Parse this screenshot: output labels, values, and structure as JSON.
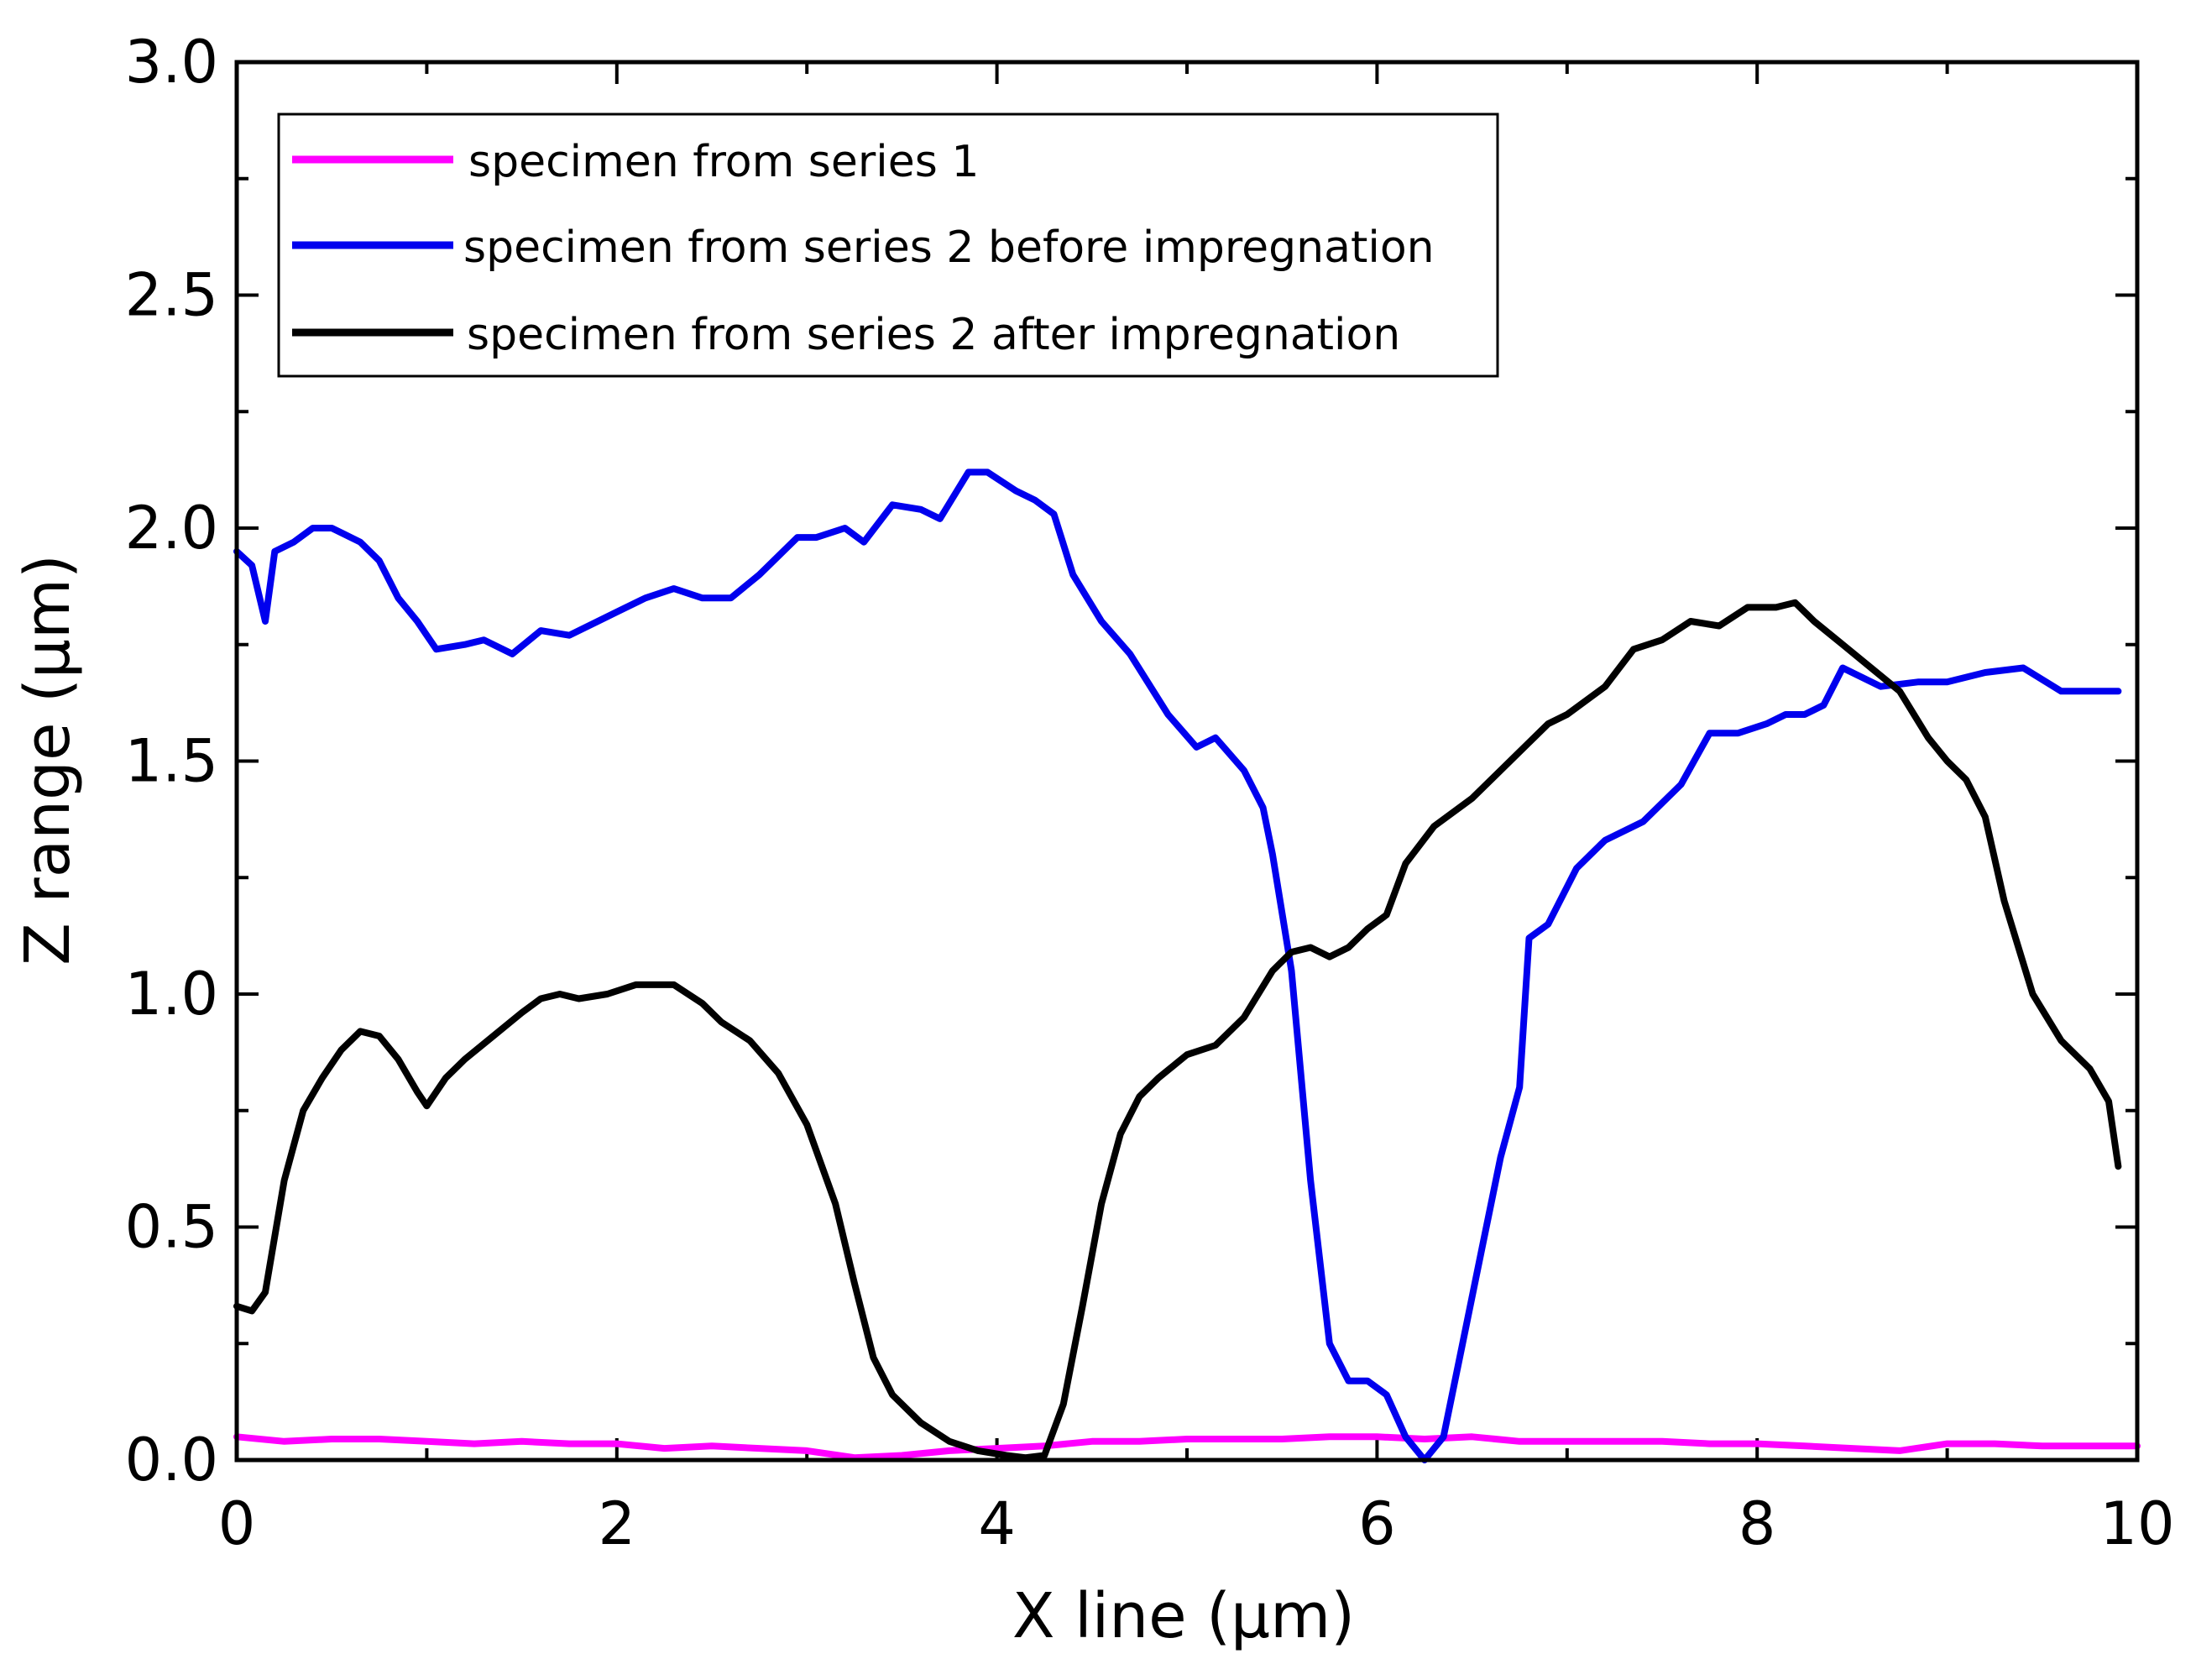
{
  "chart_data": {
    "type": "line",
    "title": "",
    "xlabel": "X line (µm)",
    "ylabel": "Z range (µm)",
    "xlim": [
      0,
      10
    ],
    "ylim": [
      0,
      3.0
    ],
    "x_ticks": [
      0,
      2,
      4,
      6,
      8,
      10
    ],
    "x_tick_labels": [
      "0",
      "2",
      "4",
      "6",
      "8",
      "10"
    ],
    "y_ticks": [
      0.0,
      0.5,
      1.0,
      1.5,
      2.0,
      2.5,
      3.0
    ],
    "y_tick_labels": [
      "0.0",
      "0.5",
      "1.0",
      "1.5",
      "2.0",
      "2.5",
      "3.0"
    ],
    "x_minor_step": 1,
    "y_minor_step": 0.25,
    "grid": false,
    "legend_position": "top-left",
    "series": [
      {
        "name": "specimen from series 1",
        "color": "#ff00ff",
        "x": [
          0,
          0.25,
          0.5,
          0.75,
          1,
          1.25,
          1.5,
          1.75,
          2,
          2.25,
          2.5,
          2.75,
          3,
          3.25,
          3.5,
          3.75,
          4,
          4.25,
          4.5,
          4.75,
          5,
          5.25,
          5.5,
          5.75,
          6,
          6.25,
          6.5,
          6.75,
          7,
          7.25,
          7.5,
          7.75,
          8,
          8.25,
          8.5,
          8.75,
          9,
          9.25,
          9.5,
          9.75,
          10
        ],
        "y": [
          0.05,
          0.04,
          0.045,
          0.045,
          0.04,
          0.035,
          0.04,
          0.035,
          0.035,
          0.025,
          0.03,
          0.025,
          0.02,
          0.005,
          0.01,
          0.02,
          0.025,
          0.03,
          0.04,
          0.04,
          0.045,
          0.045,
          0.045,
          0.05,
          0.05,
          0.045,
          0.05,
          0.04,
          0.04,
          0.04,
          0.04,
          0.035,
          0.035,
          0.03,
          0.025,
          0.02,
          0.035,
          0.035,
          0.03,
          0.03,
          0.03
        ]
      },
      {
        "name": "specimen from series 2 before impregnation",
        "color": "#0000ee",
        "x": [
          0,
          0.08,
          0.15,
          0.2,
          0.3,
          0.4,
          0.5,
          0.55,
          0.65,
          0.75,
          0.85,
          0.95,
          1.05,
          1.2,
          1.3,
          1.45,
          1.6,
          1.75,
          1.9,
          2.0,
          2.15,
          2.3,
          2.45,
          2.6,
          2.75,
          2.95,
          3.05,
          3.2,
          3.3,
          3.45,
          3.6,
          3.7,
          3.85,
          3.95,
          4.1,
          4.2,
          4.3,
          4.4,
          4.55,
          4.7,
          4.9,
          5.05,
          5.15,
          5.3,
          5.4,
          5.45,
          5.55,
          5.65,
          5.75,
          5.85,
          5.95,
          6.05,
          6.15,
          6.25,
          6.35,
          6.45,
          6.55,
          6.65,
          6.75,
          6.8,
          6.9,
          7.05,
          7.2,
          7.4,
          7.6,
          7.75,
          7.9,
          8.05,
          8.15,
          8.25,
          8.35,
          8.45,
          8.65,
          8.85,
          9.0,
          9.2,
          9.4,
          9.6,
          9.9
        ],
        "y": [
          1.95,
          1.92,
          1.8,
          1.95,
          1.97,
          2.0,
          2.0,
          1.99,
          1.97,
          1.93,
          1.85,
          1.8,
          1.74,
          1.75,
          1.76,
          1.73,
          1.78,
          1.77,
          1.8,
          1.82,
          1.85,
          1.87,
          1.85,
          1.85,
          1.9,
          1.98,
          1.98,
          2.0,
          1.97,
          2.05,
          2.04,
          2.02,
          2.12,
          2.12,
          2.08,
          2.06,
          2.03,
          1.9,
          1.8,
          1.73,
          1.6,
          1.53,
          1.55,
          1.48,
          1.4,
          1.3,
          1.05,
          0.6,
          0.25,
          0.17,
          0.17,
          0.14,
          0.05,
          0.0,
          0.05,
          0.25,
          0.45,
          0.65,
          0.8,
          1.12,
          1.15,
          1.27,
          1.33,
          1.37,
          1.45,
          1.56,
          1.56,
          1.58,
          1.6,
          1.6,
          1.62,
          1.7,
          1.66,
          1.67,
          1.67,
          1.69,
          1.7,
          1.65,
          1.65
        ]
      },
      {
        "name": "specimen from series 2 after impregnation",
        "color": "#000000",
        "x": [
          0,
          0.08,
          0.15,
          0.25,
          0.35,
          0.45,
          0.55,
          0.65,
          0.75,
          0.85,
          0.95,
          1.0,
          1.1,
          1.2,
          1.35,
          1.5,
          1.6,
          1.7,
          1.8,
          1.95,
          2.1,
          2.3,
          2.45,
          2.55,
          2.7,
          2.85,
          3.0,
          3.15,
          3.25,
          3.35,
          3.45,
          3.6,
          3.75,
          3.9,
          4.05,
          4.15,
          4.25,
          4.35,
          4.45,
          4.55,
          4.65,
          4.75,
          4.85,
          5.0,
          5.15,
          5.3,
          5.45,
          5.55,
          5.65,
          5.75,
          5.85,
          5.95,
          6.05,
          6.15,
          6.3,
          6.5,
          6.7,
          6.9,
          7.0,
          7.2,
          7.35,
          7.5,
          7.65,
          7.8,
          7.95,
          8.1,
          8.2,
          8.3,
          8.45,
          8.6,
          8.75,
          8.9,
          9.0,
          9.1,
          9.2,
          9.3,
          9.45,
          9.6,
          9.75,
          9.85,
          9.9
        ],
        "y": [
          0.33,
          0.32,
          0.36,
          0.6,
          0.75,
          0.82,
          0.88,
          0.92,
          0.91,
          0.86,
          0.79,
          0.76,
          0.82,
          0.86,
          0.91,
          0.96,
          0.99,
          1.0,
          0.99,
          1.0,
          1.02,
          1.02,
          0.98,
          0.94,
          0.9,
          0.83,
          0.72,
          0.55,
          0.38,
          0.22,
          0.14,
          0.08,
          0.04,
          0.02,
          0.01,
          0.005,
          0.01,
          0.12,
          0.33,
          0.55,
          0.7,
          0.78,
          0.82,
          0.87,
          0.89,
          0.95,
          1.05,
          1.09,
          1.1,
          1.08,
          1.1,
          1.14,
          1.17,
          1.28,
          1.36,
          1.42,
          1.5,
          1.58,
          1.6,
          1.66,
          1.74,
          1.76,
          1.8,
          1.79,
          1.83,
          1.83,
          1.84,
          1.8,
          1.75,
          1.7,
          1.65,
          1.55,
          1.5,
          1.46,
          1.38,
          1.2,
          1.0,
          0.9,
          0.84,
          0.77,
          0.63
        ]
      }
    ]
  }
}
